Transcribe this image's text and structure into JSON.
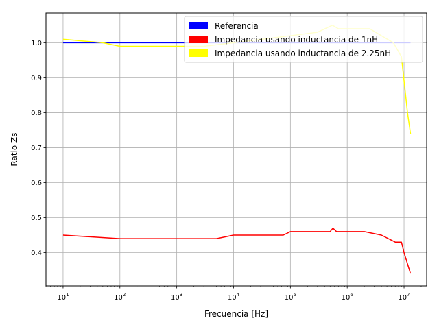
{
  "chart_data": {
    "type": "line",
    "xlabel": "Frecuencia [Hz]",
    "ylabel": "Ratio Zs",
    "x_scale": "log",
    "xlim": [
      5,
      25000000
    ],
    "ylim": [
      0.305,
      1.085
    ],
    "grid": true,
    "legend_position": "top-right",
    "x_ticks": [
      {
        "value": 10,
        "base": "10",
        "exp": "1"
      },
      {
        "value": 100,
        "base": "10",
        "exp": "2"
      },
      {
        "value": 1000,
        "base": "10",
        "exp": "3"
      },
      {
        "value": 10000,
        "base": "10",
        "exp": "4"
      },
      {
        "value": 100000,
        "base": "10",
        "exp": "5"
      },
      {
        "value": 1000000,
        "base": "10",
        "exp": "6"
      },
      {
        "value": 10000000,
        "base": "10",
        "exp": "7"
      }
    ],
    "y_ticks": [
      {
        "value": 0.4,
        "label": "0.4"
      },
      {
        "value": 0.5,
        "label": "0.5"
      },
      {
        "value": 0.6,
        "label": "0.6"
      },
      {
        "value": 0.7,
        "label": "0.7"
      },
      {
        "value": 0.8,
        "label": "0.8"
      },
      {
        "value": 0.9,
        "label": "0.9"
      },
      {
        "value": 1.0,
        "label": "1.0"
      }
    ],
    "series": [
      {
        "name": "Referencia",
        "color": "#0000ff",
        "points": [
          [
            10,
            1.0
          ],
          [
            13000000,
            1.0
          ]
        ]
      },
      {
        "name": "Impedancia usando inductancia de 1nH",
        "color": "#ff0000",
        "points": [
          [
            10,
            0.45
          ],
          [
            100,
            0.44
          ],
          [
            1000,
            0.44
          ],
          [
            5000,
            0.44
          ],
          [
            10000,
            0.45
          ],
          [
            75000,
            0.45
          ],
          [
            100000,
            0.46
          ],
          [
            500000,
            0.46
          ],
          [
            560000,
            0.47
          ],
          [
            650000,
            0.46
          ],
          [
            2000000,
            0.46
          ],
          [
            4000000,
            0.45
          ],
          [
            7000000,
            0.43
          ],
          [
            9000000,
            0.43
          ],
          [
            10000000,
            0.4
          ],
          [
            13000000,
            0.34
          ]
        ]
      },
      {
        "name": "Impedancia usando inductancia de 2.25nH",
        "color": "#ffff00",
        "points": [
          [
            10,
            1.01
          ],
          [
            50,
            1.0
          ],
          [
            100,
            0.99
          ],
          [
            1000,
            0.99
          ],
          [
            3000,
            0.99
          ],
          [
            10000,
            1.0
          ],
          [
            100000,
            1.02
          ],
          [
            300000,
            1.03
          ],
          [
            550000,
            1.05
          ],
          [
            700000,
            1.04
          ],
          [
            2500000,
            1.04
          ],
          [
            4000000,
            1.02
          ],
          [
            6500000,
            1.0
          ],
          [
            9000000,
            0.96
          ],
          [
            10500000,
            0.86
          ],
          [
            11500000,
            0.8
          ],
          [
            13000000,
            0.74
          ]
        ]
      }
    ]
  }
}
